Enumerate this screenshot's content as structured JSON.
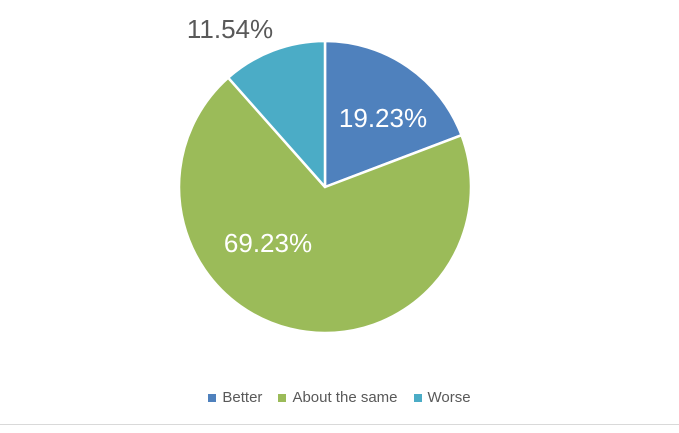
{
  "chart_data": {
    "type": "pie",
    "title": "",
    "categories": [
      "Better",
      "About the same",
      "Worse"
    ],
    "values": [
      19.23,
      69.23,
      11.54
    ],
    "data_labels": [
      "19.23%",
      "69.23%",
      "11.54%"
    ],
    "colors": [
      "#4f81bd",
      "#9bbb59",
      "#4bacc6"
    ],
    "start_angle_deg": 0,
    "direction": "clockwise",
    "legend_position": "bottom"
  }
}
